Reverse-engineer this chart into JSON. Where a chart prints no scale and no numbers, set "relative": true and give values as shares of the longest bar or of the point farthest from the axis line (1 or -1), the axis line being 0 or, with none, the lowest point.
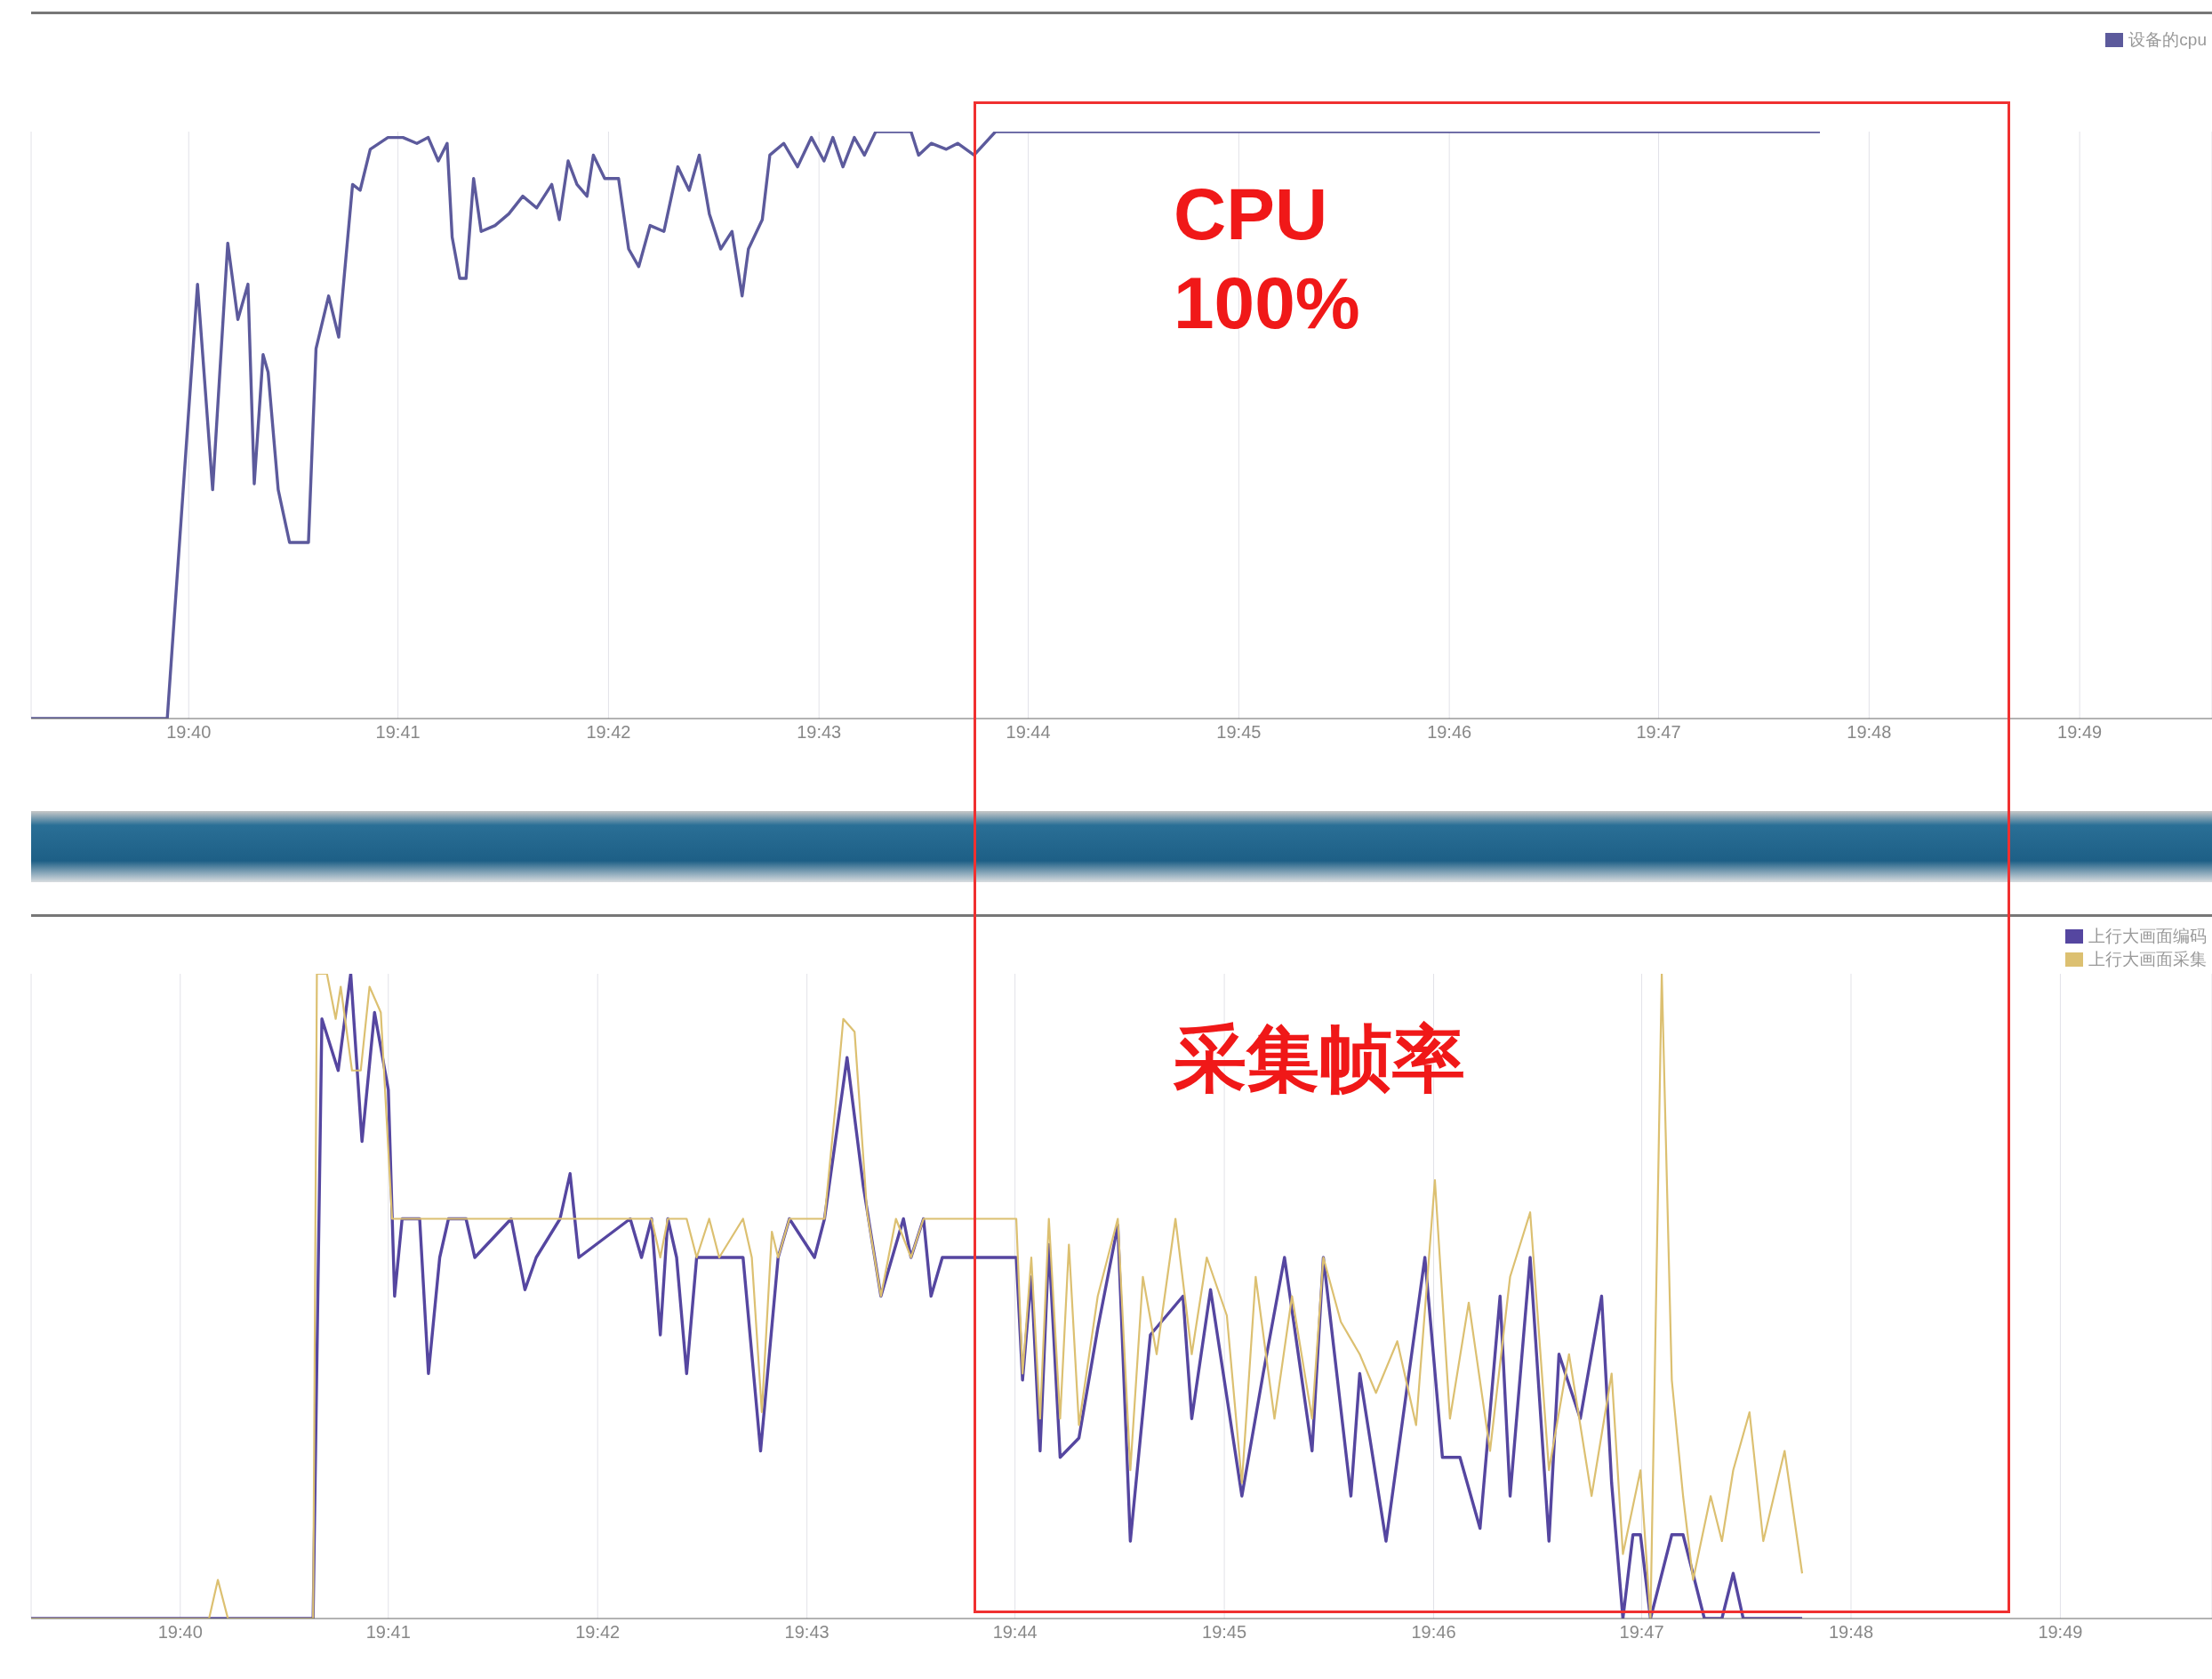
{
  "chart_data": [
    {
      "type": "line",
      "relative": true,
      "grid": "x",
      "legend": "top right",
      "annotations": [
        "CPU",
        "100%"
      ],
      "xlim": [
        19.6542,
        19.8272
      ],
      "xticks": [
        {
          "value": 19.6667,
          "label": "19:40"
        },
        {
          "value": 19.6833,
          "label": "19:41"
        },
        {
          "value": 19.7,
          "label": "19:42"
        },
        {
          "value": 19.7167,
          "label": "19:43"
        },
        {
          "value": 19.7333,
          "label": "19:44"
        },
        {
          "value": 19.75,
          "label": "19:45"
        },
        {
          "value": 19.7667,
          "label": "19:46"
        },
        {
          "value": 19.7833,
          "label": "19:47"
        },
        {
          "value": 19.8,
          "label": "19:48"
        },
        {
          "value": 19.8167,
          "label": "19:49"
        }
      ],
      "series": [
        {
          "name": "设备的cpu",
          "color": "#5c5a9c",
          "x": [
            19.6542,
            19.665,
            19.6674,
            19.6686,
            19.6698,
            19.6706,
            19.6714,
            19.6719,
            19.6726,
            19.673,
            19.6738,
            19.6747,
            19.6762,
            19.6768,
            19.6778,
            19.6786,
            19.6797,
            19.6803,
            19.6811,
            19.6825,
            19.6837,
            19.6848,
            19.6857,
            19.6865,
            19.6872,
            19.6876,
            19.6882,
            19.6887,
            19.6893,
            19.6899,
            19.691,
            19.6921,
            19.6932,
            19.6943,
            19.6955,
            19.6961,
            19.6968,
            19.6975,
            19.6983,
            19.6988,
            19.6997,
            19.7008,
            19.7016,
            19.7024,
            19.7033,
            19.7044,
            19.7055,
            19.7064,
            19.7072,
            19.708,
            19.7089,
            19.7098,
            19.7106,
            19.7111,
            19.7122,
            19.7128,
            19.7139,
            19.715,
            19.7161,
            19.7171,
            19.7178,
            19.7186,
            19.7195,
            19.7203,
            19.7212,
            19.724,
            19.7246,
            19.7256,
            19.7268,
            19.7277,
            19.729,
            19.7307,
            19.7961
          ],
          "values": [
            0,
            0,
            0.74,
            0.39,
            0.81,
            0.68,
            0.74,
            0.4,
            0.62,
            0.59,
            0.39,
            0.3,
            0.3,
            0.63,
            0.72,
            0.65,
            0.91,
            0.9,
            0.97,
            0.99,
            0.99,
            0.98,
            0.99,
            0.95,
            0.98,
            0.82,
            0.75,
            0.75,
            0.92,
            0.83,
            0.84,
            0.86,
            0.89,
            0.87,
            0.91,
            0.85,
            0.95,
            0.91,
            0.89,
            0.96,
            0.92,
            0.92,
            0.8,
            0.77,
            0.84,
            0.83,
            0.94,
            0.9,
            0.96,
            0.86,
            0.8,
            0.83,
            0.72,
            0.8,
            0.85,
            0.96,
            0.98,
            0.94,
            0.99,
            0.95,
            0.99,
            0.94,
            0.99,
            0.96,
            1,
            1,
            0.96,
            0.98,
            0.97,
            0.98,
            0.96,
            1,
            1
          ]
        }
      ]
    },
    {
      "type": "line",
      "relative": true,
      "grid": "x",
      "legend": "top right",
      "annotations": [
        "采集帧率"
      ],
      "xlim": [
        19.6548,
        19.8288
      ],
      "xticks": [
        {
          "value": 19.6667,
          "label": "19:40"
        },
        {
          "value": 19.6833,
          "label": "19:41"
        },
        {
          "value": 19.7,
          "label": "19:42"
        },
        {
          "value": 19.7167,
          "label": "19:43"
        },
        {
          "value": 19.7333,
          "label": "19:44"
        },
        {
          "value": 19.75,
          "label": "19:45"
        },
        {
          "value": 19.7667,
          "label": "19:46"
        },
        {
          "value": 19.7833,
          "label": "19:47"
        },
        {
          "value": 19.8,
          "label": "19:48"
        },
        {
          "value": 19.8167,
          "label": "19:49"
        }
      ],
      "series": [
        {
          "name": "上行大画面编码",
          "color": "#5546a0",
          "x": [
            19.6548,
            19.6773,
            19.678,
            19.6793,
            19.6803,
            19.6812,
            19.6822,
            19.6833,
            19.6838,
            19.6844,
            19.6858,
            19.6865,
            19.6874,
            19.6881,
            19.6895,
            19.6902,
            19.6931,
            19.6942,
            19.6951,
            19.697,
            19.6978,
            19.6985,
            19.7026,
            19.7035,
            19.7043,
            19.705,
            19.7056,
            19.7063,
            19.7071,
            19.7079,
            19.7116,
            19.713,
            19.7144,
            19.7153,
            19.7173,
            19.7181,
            19.7199,
            19.7212,
            19.7226,
            19.7244,
            19.725,
            19.726,
            19.7266,
            19.7275,
            19.7334,
            19.7339,
            19.7346,
            19.7353,
            19.736,
            19.7369,
            19.7384,
            19.7399,
            19.7415,
            19.7425,
            19.7441,
            19.7467,
            19.7474,
            19.7489,
            19.7514,
            19.7531,
            19.7548,
            19.757,
            19.7579,
            19.7601,
            19.7608,
            19.7629,
            19.766,
            19.7674,
            19.7688,
            19.7704,
            19.772,
            19.7728,
            19.7744,
            19.7759,
            19.7767,
            19.7784,
            19.7801,
            19.7809,
            19.7818,
            19.7826,
            19.7832,
            19.784,
            19.7857,
            19.7866,
            19.7883,
            19.7897,
            19.7906,
            19.7914,
            19.7961
          ],
          "values": [
            0,
            0,
            0.93,
            0.85,
            1,
            0.74,
            0.94,
            0.82,
            0.5,
            0.62,
            0.62,
            0.38,
            0.56,
            0.62,
            0.62,
            0.56,
            0.62,
            0.51,
            0.56,
            0.62,
            0.69,
            0.56,
            0.62,
            0.56,
            0.62,
            0.44,
            0.62,
            0.56,
            0.38,
            0.56,
            0.56,
            0.26,
            0.56,
            0.62,
            0.56,
            0.62,
            0.87,
            0.67,
            0.5,
            0.62,
            0.56,
            0.62,
            0.5,
            0.56,
            0.56,
            0.37,
            0.53,
            0.26,
            0.58,
            0.25,
            0.28,
            0.45,
            0.61,
            0.12,
            0.44,
            0.5,
            0.31,
            0.51,
            0.19,
            0.38,
            0.56,
            0.26,
            0.56,
            0.19,
            0.38,
            0.12,
            0.56,
            0.25,
            0.25,
            0.14,
            0.5,
            0.19,
            0.56,
            0.12,
            0.41,
            0.31,
            0.5,
            0.21,
            0,
            0.13,
            0.13,
            0,
            0.13,
            0.13,
            0,
            0,
            0.07,
            0,
            0
          ]
        },
        {
          "name": "上行大画面采集",
          "color": "#dcc071",
          "x": [
            19.6548,
            19.669,
            19.6697,
            19.6705,
            19.6773,
            19.6776,
            19.6784,
            19.6791,
            19.6795,
            19.6804,
            19.6811,
            19.6818,
            19.6827,
            19.6836,
            19.7043,
            19.705,
            19.7056,
            19.7071,
            19.7079,
            19.7089,
            19.7097,
            19.7116,
            19.7123,
            19.7131,
            19.7139,
            19.7144,
            19.7153,
            19.7181,
            19.719,
            19.7196,
            19.7205,
            19.7215,
            19.7226,
            19.7238,
            19.725,
            19.726,
            19.7334,
            19.7339,
            19.7346,
            19.7353,
            19.736,
            19.7369,
            19.7376,
            19.7384,
            19.7399,
            19.7415,
            19.7425,
            19.7435,
            19.7446,
            19.7461,
            19.7474,
            19.7486,
            19.7502,
            19.7514,
            19.7525,
            19.754,
            19.7554,
            19.757,
            19.7579,
            19.7593,
            19.7608,
            19.7621,
            19.7638,
            19.7653,
            19.7668,
            19.768,
            19.7695,
            19.7712,
            19.7728,
            19.7744,
            19.7759,
            19.7775,
            19.7793,
            19.7809,
            19.7818,
            19.7832,
            19.784,
            19.7849,
            19.7857,
            19.7866,
            19.7874,
            19.7888,
            19.7897,
            19.7906,
            19.7919,
            19.793,
            19.7947,
            19.7961
          ],
          "values": [
            0,
            0,
            0.06,
            0,
            0,
            1,
            1,
            0.93,
            0.98,
            0.85,
            0.85,
            0.98,
            0.94,
            0.62,
            0.62,
            0.56,
            0.62,
            0.62,
            0.56,
            0.62,
            0.56,
            0.62,
            0.56,
            0.32,
            0.6,
            0.56,
            0.62,
            0.62,
            0.8,
            0.93,
            0.91,
            0.63,
            0.5,
            0.62,
            0.56,
            0.62,
            0.62,
            0.38,
            0.56,
            0.31,
            0.62,
            0.31,
            0.58,
            0.3,
            0.5,
            0.62,
            0.23,
            0.53,
            0.41,
            0.62,
            0.41,
            0.56,
            0.47,
            0.21,
            0.53,
            0.31,
            0.5,
            0.31,
            0.56,
            0.46,
            0.41,
            0.35,
            0.43,
            0.3,
            0.68,
            0.31,
            0.49,
            0.26,
            0.53,
            0.63,
            0.23,
            0.41,
            0.19,
            0.38,
            0.1,
            0.23,
            0,
            1,
            0.37,
            0.19,
            0.06,
            0.19,
            0.12,
            0.23,
            0.32,
            0.12,
            0.26,
            0.07
          ]
        }
      ]
    }
  ]
}
